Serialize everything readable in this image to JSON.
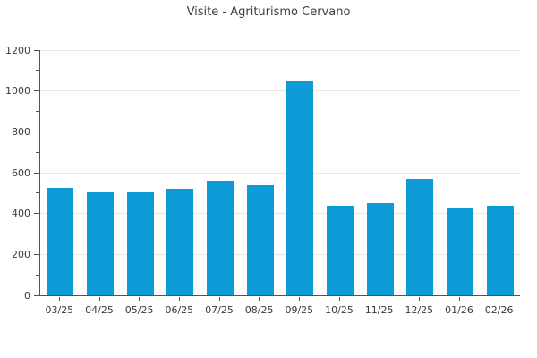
{
  "title": "Visite - Agriturismo Cervano",
  "colors": {
    "bar": "#0e9ad7",
    "grid": "#e7e7e7",
    "axis": "#525252",
    "text": "#3a3a3a",
    "background": "#ffffff"
  },
  "chart_data": {
    "type": "bar",
    "title": "Visite - Agriturismo Cervano",
    "categories": [
      "03/25",
      "04/25",
      "05/25",
      "06/25",
      "07/25",
      "08/25",
      "09/25",
      "10/25",
      "11/25",
      "12/25",
      "01/26",
      "02/26"
    ],
    "values": [
      525,
      505,
      505,
      520,
      560,
      540,
      1050,
      440,
      450,
      570,
      430,
      440
    ],
    "xlabel": "",
    "ylabel": "",
    "ylim": [
      0,
      1200
    ],
    "y_major_step": 200,
    "y_minor_step": 100,
    "y_tick_labels": [
      "0",
      "200",
      "400",
      "600",
      "800",
      "1000",
      "1200"
    ],
    "grid": true,
    "legend": "none",
    "bar_color": "#0e9ad7"
  }
}
